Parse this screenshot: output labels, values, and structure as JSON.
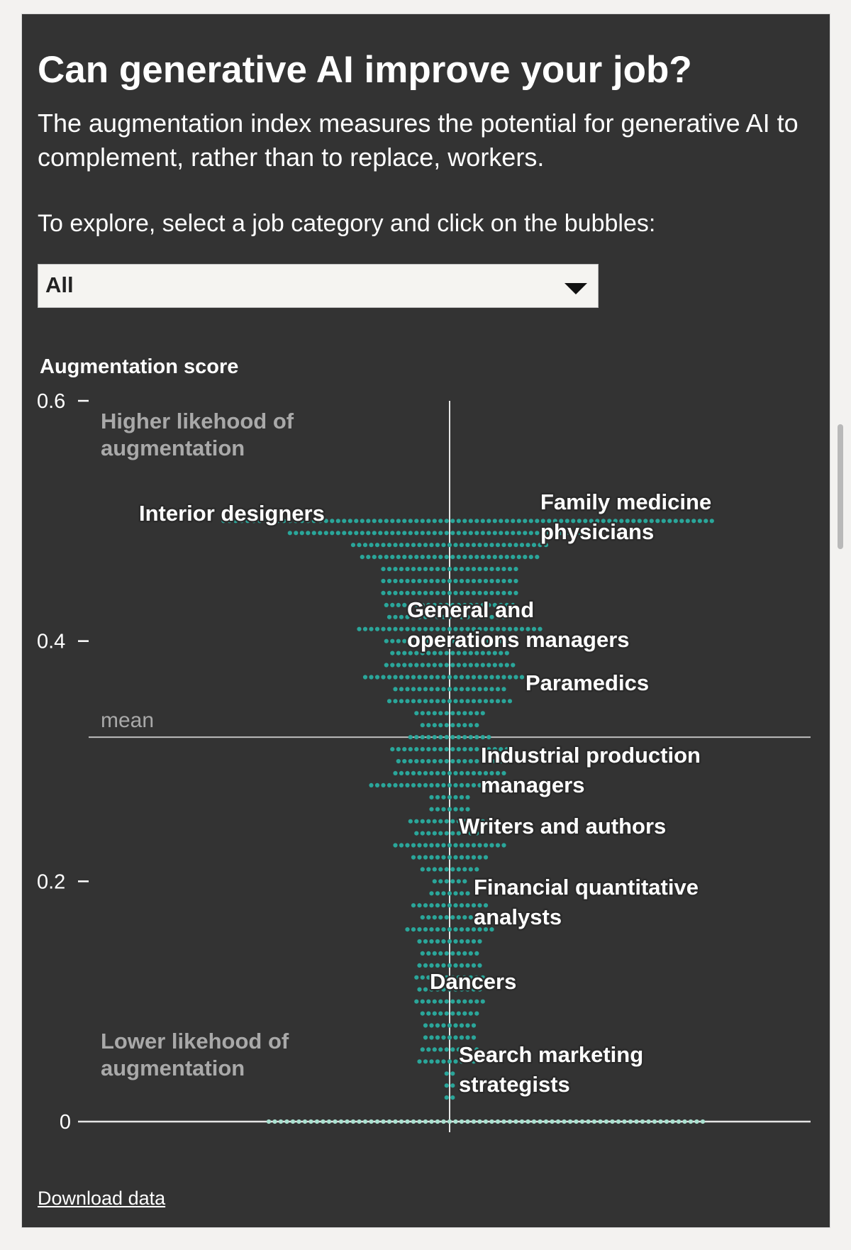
{
  "header": {
    "title": "Can generative AI improve your job?",
    "subtitle": "The augmentation index measures the potential for generative AI to complement, rather than to replace, workers.",
    "instruction": "To explore, select a job category and click on the bubbles:"
  },
  "filter": {
    "selected": "All"
  },
  "footer": {
    "download_label": "Download data"
  },
  "colors": {
    "background": "#333333",
    "page": "#f3f2f0",
    "dot": "#2aa69a",
    "dot_highlight": "#a9e0cf",
    "text": "#ffffff",
    "muted_text": "#a9a9a9"
  },
  "chart_data": {
    "type": "scatter",
    "subtype": "beeswarm",
    "ylabel": "Augmentation score",
    "ylim": [
      0,
      0.6
    ],
    "yticks": [
      {
        "value": 0.6,
        "label": "0.6"
      },
      {
        "value": 0.4,
        "label": "0.4"
      },
      {
        "value": 0.2,
        "label": "0.2"
      },
      {
        "value": 0,
        "label": "0"
      }
    ],
    "region_labels": {
      "top": "Higher likehood of augmentation",
      "bottom": "Lower likehood of augmentation"
    },
    "mean": {
      "value": 0.32,
      "label": "mean"
    },
    "swarm_rows": [
      {
        "y": 0.5,
        "count": 82
      },
      {
        "y": 0.49,
        "count": 50
      },
      {
        "y": 0.48,
        "count": 33
      },
      {
        "y": 0.47,
        "count": 30
      },
      {
        "y": 0.46,
        "count": 23
      },
      {
        "y": 0.45,
        "count": 23
      },
      {
        "y": 0.44,
        "count": 23
      },
      {
        "y": 0.43,
        "count": 22
      },
      {
        "y": 0.42,
        "count": 21
      },
      {
        "y": 0.41,
        "count": 31
      },
      {
        "y": 0.4,
        "count": 22
      },
      {
        "y": 0.39,
        "count": 20
      },
      {
        "y": 0.38,
        "count": 22
      },
      {
        "y": 0.37,
        "count": 29
      },
      {
        "y": 0.36,
        "count": 19
      },
      {
        "y": 0.35,
        "count": 21
      },
      {
        "y": 0.34,
        "count": 12
      },
      {
        "y": 0.33,
        "count": 10
      },
      {
        "y": 0.32,
        "count": 14
      },
      {
        "y": 0.31,
        "count": 20
      },
      {
        "y": 0.3,
        "count": 18
      },
      {
        "y": 0.29,
        "count": 19
      },
      {
        "y": 0.28,
        "count": 27
      },
      {
        "y": 0.27,
        "count": 7
      },
      {
        "y": 0.26,
        "count": 7
      },
      {
        "y": 0.25,
        "count": 14
      },
      {
        "y": 0.24,
        "count": 12
      },
      {
        "y": 0.23,
        "count": 19
      },
      {
        "y": 0.22,
        "count": 13
      },
      {
        "y": 0.21,
        "count": 10
      },
      {
        "y": 0.2,
        "count": 6
      },
      {
        "y": 0.19,
        "count": 7
      },
      {
        "y": 0.18,
        "count": 13
      },
      {
        "y": 0.17,
        "count": 10
      },
      {
        "y": 0.16,
        "count": 15
      },
      {
        "y": 0.15,
        "count": 11
      },
      {
        "y": 0.14,
        "count": 10
      },
      {
        "y": 0.13,
        "count": 11
      },
      {
        "y": 0.12,
        "count": 12
      },
      {
        "y": 0.11,
        "count": 11
      },
      {
        "y": 0.1,
        "count": 12
      },
      {
        "y": 0.09,
        "count": 10
      },
      {
        "y": 0.08,
        "count": 9
      },
      {
        "y": 0.07,
        "count": 9
      },
      {
        "y": 0.06,
        "count": 10
      },
      {
        "y": 0.05,
        "count": 11
      },
      {
        "y": 0.04,
        "count": 2
      },
      {
        "y": 0.03,
        "count": 2
      },
      {
        "y": 0.02,
        "count": 2
      },
      {
        "y": 0.0,
        "count": 73
      }
    ],
    "annotations": [
      {
        "label": "Interior designers",
        "y": 0.5
      },
      {
        "label": "Family medicine physicians",
        "y": 0.5
      },
      {
        "label": "General and operations managers",
        "y": 0.41
      },
      {
        "label": "Paramedics",
        "y": 0.36
      },
      {
        "label": "Industrial production managers",
        "y": 0.29
      },
      {
        "label": "Writers and authors",
        "y": 0.24
      },
      {
        "label": "Financial quantitative analysts",
        "y": 0.19
      },
      {
        "label": "Dancers",
        "y": 0.11
      },
      {
        "label": "Search marketing strategists",
        "y": 0.05
      }
    ]
  }
}
